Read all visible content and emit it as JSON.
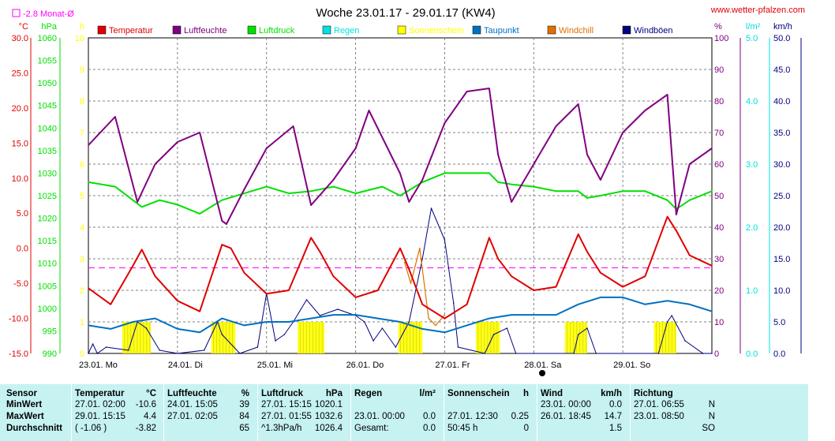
{
  "title": "Woche 23.01.17 - 29.01.17 (KW4)",
  "site": "www.wetter-pfalzen.com",
  "monthly_avg_label": "-2.8 Monat-Ø",
  "colors": {
    "temperatur": "#e00000",
    "luftfeuchte": "#800080",
    "luftdruck": "#00e000",
    "regen": "#00e0e0",
    "sonnenschein": "#ffff00",
    "taupunkt": "#0070c0",
    "windchill": "#e07000",
    "windboeen": "#000080",
    "stats_bg": "#c6f2f2"
  },
  "chart_data": {
    "type": "line",
    "title": "Woche 23.01.17 - 29.01.17 (KW4)",
    "x_days": [
      "23.01. Mo",
      "24.01. Di",
      "25.01. Mi",
      "26.01. Do",
      "27.01. Fr",
      "28.01. Sa",
      "29.01. So"
    ],
    "legend": [
      "Temperatur",
      "Luftfeuchte",
      "Luftdruck",
      "Regen",
      "Sonnenschein",
      "Taupunkt",
      "Windchill",
      "Windböen"
    ],
    "axes": {
      "temp": {
        "unit": "°C",
        "min": -15,
        "max": 30,
        "ticks": [
          "30.0",
          "25.0",
          "20.0",
          "15.0",
          "10.0",
          "5.0",
          "0.0",
          "-5.0",
          "-10.0",
          "-15.0"
        ]
      },
      "pressure": {
        "unit": "hPa",
        "min": 990,
        "max": 1060,
        "ticks": [
          "1060",
          "1055",
          "1050",
          "1045",
          "1040",
          "1035",
          "1030",
          "1025",
          "1020",
          "1015",
          "1010",
          "1005",
          "1000",
          "995",
          "990"
        ]
      },
      "sun": {
        "unit": "h",
        "min": 0,
        "max": 10,
        "ticks": [
          "10",
          "9",
          "8",
          "7",
          "6",
          "5",
          "4",
          "3",
          "2",
          "1",
          "0"
        ]
      },
      "humidity": {
        "unit": "%",
        "min": 0,
        "max": 100,
        "ticks": [
          "100",
          "90",
          "80",
          "70",
          "60",
          "50",
          "40",
          "30",
          "20",
          "10",
          "0"
        ]
      },
      "rain": {
        "unit": "l/m²",
        "min": 0,
        "max": 5,
        "ticks": [
          "5.0",
          "4.0",
          "3.0",
          "2.0",
          "1.0",
          "0.0"
        ]
      },
      "wind": {
        "unit": "km/h",
        "min": 0,
        "max": 50,
        "ticks": [
          "50.0",
          "45.0",
          "40.0",
          "35.0",
          "30.0",
          "25.0",
          "20.0",
          "15.0",
          "10.0",
          "5.0",
          "0.0"
        ]
      }
    },
    "monthly_avg_temp": -2.8,
    "series": {
      "temperatur": {
        "name": "Temperatur",
        "axis": "temp",
        "x": [
          0,
          0.25,
          0.5,
          0.6,
          0.75,
          1.0,
          1.25,
          1.5,
          1.6,
          1.75,
          2.0,
          2.25,
          2.5,
          2.6,
          2.75,
          3.0,
          3.25,
          3.5,
          3.6,
          3.75,
          4.0,
          4.25,
          4.5,
          4.6,
          4.75,
          5.0,
          5.25,
          5.5,
          5.6,
          5.75,
          6.0,
          6.25,
          6.5,
          6.6,
          6.75,
          7.0
        ],
        "y": [
          -5.7,
          -8.0,
          -2.5,
          -0.2,
          -4.0,
          -7.5,
          -9.0,
          0.5,
          0.0,
          -3.5,
          -6.5,
          -6.0,
          1.5,
          -0.5,
          -4.0,
          -7.0,
          -6.0,
          0.0,
          -3.0,
          -8.0,
          -10.0,
          -8.0,
          1.5,
          -1.5,
          -4.0,
          -6.0,
          -5.5,
          2.0,
          -0.5,
          -3.5,
          -5.5,
          -4.0,
          4.5,
          2.5,
          -1.0,
          -2.5
        ]
      },
      "luftfeuchte": {
        "name": "Luftfeuchte",
        "axis": "humidity",
        "x": [
          0,
          0.3,
          0.55,
          0.75,
          1.0,
          1.25,
          1.5,
          1.55,
          1.75,
          2.0,
          2.3,
          2.5,
          2.75,
          3.0,
          3.15,
          3.5,
          3.6,
          3.75,
          4.0,
          4.25,
          4.5,
          4.6,
          4.75,
          5.0,
          5.25,
          5.5,
          5.6,
          5.75,
          6.0,
          6.25,
          6.5,
          6.6,
          6.75,
          7.0
        ],
        "y": [
          66,
          75,
          48,
          60,
          67,
          70,
          42,
          41,
          52,
          65,
          72,
          47,
          55,
          65,
          77,
          57,
          48,
          55,
          73,
          83,
          84,
          63,
          48,
          60,
          72,
          79,
          63,
          55,
          70,
          77,
          82,
          44,
          60,
          65
        ]
      },
      "luftdruck": {
        "name": "Luftdruck",
        "axis": "pressure",
        "x": [
          0,
          0.3,
          0.6,
          0.8,
          1.0,
          1.25,
          1.5,
          1.75,
          2.0,
          2.25,
          2.5,
          2.75,
          3.0,
          3.3,
          3.5,
          3.75,
          4.0,
          4.25,
          4.5,
          4.6,
          4.75,
          5.0,
          5.25,
          5.5,
          5.6,
          5.75,
          6.0,
          6.25,
          6.5,
          6.6,
          6.75,
          7.0
        ],
        "y": [
          1028,
          1027,
          1022.5,
          1024,
          1023,
          1021,
          1024,
          1025.5,
          1027,
          1025.5,
          1026,
          1027,
          1025.5,
          1027,
          1025,
          1028,
          1030,
          1030,
          1030,
          1028,
          1027.5,
          1027,
          1026,
          1026,
          1024.5,
          1025,
          1026,
          1026,
          1024,
          1022,
          1024,
          1026
        ]
      },
      "taupunkt": {
        "name": "Taupunkt",
        "axis": "temp",
        "x": [
          0,
          0.25,
          0.5,
          0.75,
          1.0,
          1.25,
          1.5,
          1.75,
          2.0,
          2.25,
          2.5,
          2.75,
          3.0,
          3.25,
          3.5,
          3.75,
          4.0,
          4.25,
          4.5,
          4.75,
          5.0,
          5.25,
          5.5,
          5.75,
          6.0,
          6.25,
          6.5,
          6.75,
          7.0
        ],
        "y": [
          -11.0,
          -11.5,
          -10.5,
          -10.0,
          -11.5,
          -12.0,
          -10.0,
          -11.0,
          -10.5,
          -10.5,
          -10.0,
          -9.5,
          -9.5,
          -10.0,
          -10.5,
          -11.5,
          -12.0,
          -11.0,
          -10.0,
          -9.5,
          -9.5,
          -9.5,
          -8.0,
          -7.0,
          -7.0,
          -8.0,
          -7.5,
          -8.0,
          -9.0
        ]
      },
      "windchill": {
        "name": "Windchill",
        "axis": "temp",
        "x": [
          3.55,
          3.62,
          3.72,
          3.82,
          3.9,
          4.0
        ],
        "y": [
          -2.0,
          -5.0,
          0.0,
          -10.0,
          -11.0,
          -9.5
        ]
      },
      "windboeen": {
        "name": "Windböen",
        "axis": "wind",
        "x": [
          0,
          0.05,
          0.1,
          0.2,
          0.45,
          0.55,
          0.65,
          0.8,
          1.0,
          1.3,
          1.45,
          1.5,
          1.7,
          1.9,
          2.0,
          2.1,
          2.2,
          2.3,
          2.45,
          2.6,
          2.8,
          3.0,
          3.1,
          3.2,
          3.3,
          3.45,
          3.6,
          3.75,
          3.85,
          4.0,
          4.1,
          4.15,
          4.45,
          4.55,
          4.7,
          4.8,
          5.0,
          5.45,
          5.5,
          5.6,
          5.7,
          6.4,
          6.5,
          6.55,
          6.7,
          6.9,
          7.0
        ],
        "y": [
          0,
          1.5,
          0,
          1,
          0.5,
          5,
          4,
          0.5,
          0,
          0.5,
          5,
          3,
          0,
          1,
          9.5,
          2,
          3,
          5,
          8.5,
          6,
          7,
          6,
          5,
          2,
          4,
          1,
          5,
          15,
          23,
          18,
          8,
          1,
          0,
          3,
          4,
          0,
          0,
          0,
          3,
          4,
          0,
          0,
          5,
          6,
          2,
          0,
          0
        ]
      },
      "sonnenschein": {
        "name": "Sonnenschein",
        "axis": "sun",
        "blocks": [
          [
            0.38,
            0.7
          ],
          [
            1.38,
            1.65
          ],
          [
            2.35,
            2.65
          ],
          [
            3.48,
            3.75
          ],
          [
            4.35,
            4.62
          ],
          [
            5.35,
            5.6
          ],
          [
            6.35,
            6.6
          ]
        ]
      },
      "regen": {
        "name": "Regen",
        "axis": "rain",
        "x": [],
        "y": []
      }
    }
  },
  "stats": {
    "headers": {
      "sensor": "Sensor",
      "temp": "Temperatur",
      "temp_unit": "°C",
      "hum": "Luftfeuchte",
      "hum_unit": "%",
      "press": "Luftdruck",
      "press_unit": "hPa",
      "rain": "Regen",
      "rain_unit": "l/m²",
      "sun": "Sonnenschein",
      "sun_unit": "h",
      "wind": "Wind",
      "wind_unit": "km/h",
      "dir": "Richtung"
    },
    "rows": [
      {
        "label": "MinWert",
        "temp_t": "27.01. 02:00",
        "temp_v": "-10.6",
        "hum_t": "24.01. 15:05",
        "hum_v": "39",
        "press_t": "27.01. 15:15",
        "press_v": "1020.1",
        "rain_t": "",
        "rain_v": "",
        "sun_t": "",
        "sun_v": "",
        "wind_t": "23.01. 00:00",
        "wind_v": "0.0",
        "dir_t": "27.01. 06:55",
        "dir_v": "N"
      },
      {
        "label": "MaxWert",
        "temp_t": "29.01. 15:15",
        "temp_v": "4.4",
        "hum_t": "27.01. 02:05",
        "hum_v": "84",
        "press_t": "27.01. 01:55",
        "press_v": "1032.6",
        "rain_t": "23.01. 00:00",
        "rain_v": "0.0",
        "sun_t": "27.01. 12:30",
        "sun_v": "0.25",
        "wind_t": "26.01. 18:45",
        "wind_v": "14.7",
        "dir_t": "23.01. 08:50",
        "dir_v": "N"
      },
      {
        "label": "Durchschnitt",
        "temp_t": "( -1.06 )",
        "temp_v": "-3.82",
        "hum_t": "",
        "hum_v": "65",
        "press_t": "^1.3hPa/h",
        "press_v": "1026.4",
        "rain_t": "Gesamt:",
        "rain_v": "0.0",
        "sun_t": "50:45 h",
        "sun_v": "0",
        "wind_t": "",
        "wind_v": "1.5",
        "dir_t": "",
        "dir_v": "SO"
      }
    ]
  }
}
